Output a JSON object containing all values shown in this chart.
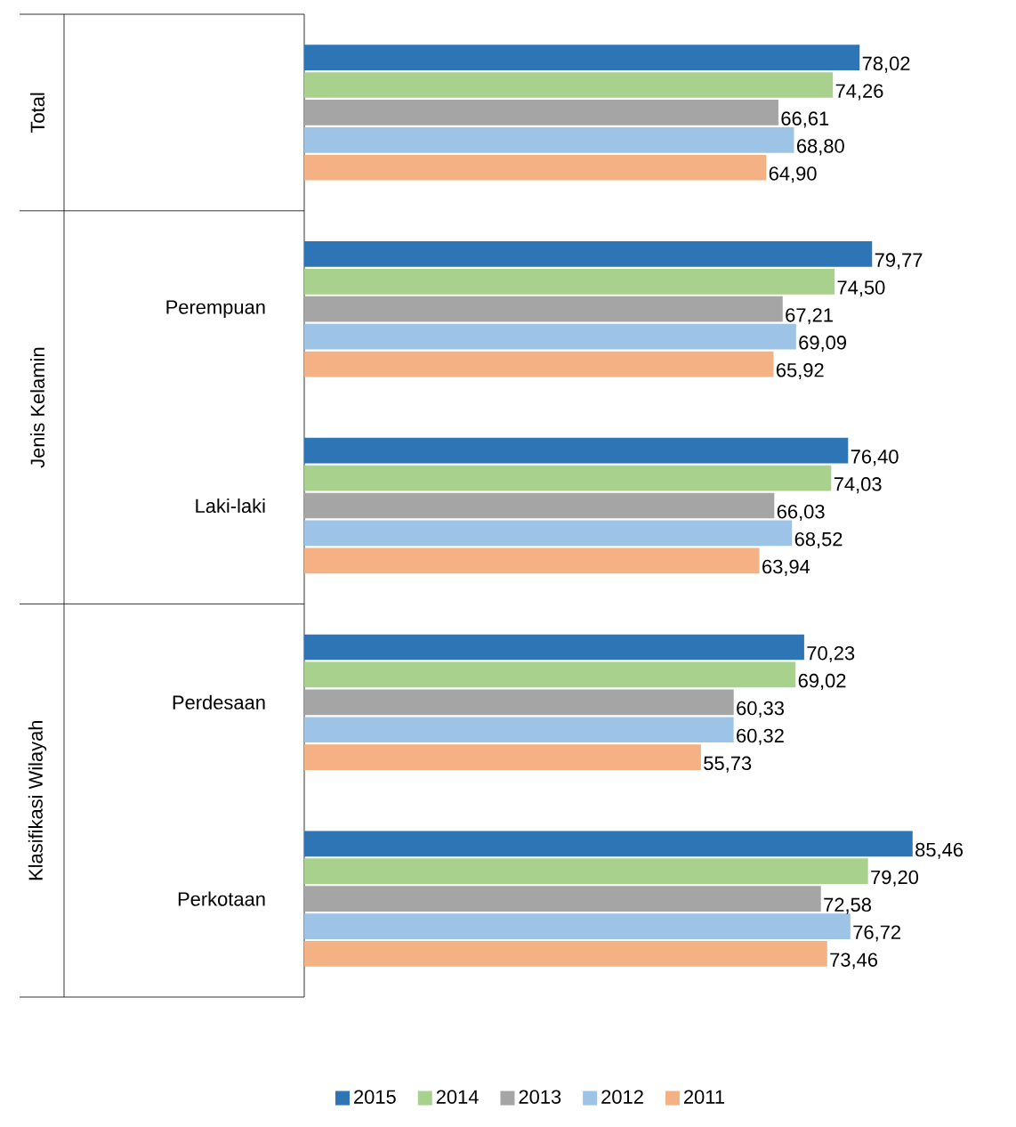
{
  "chart_data": {
    "type": "bar",
    "orientation": "horizontal",
    "categories": [
      null,
      "Perempuan",
      "Laki-laki",
      "Perdesaan",
      "Perkotaan"
    ],
    "legend": "bottom",
    "annotations": [
      "Total",
      "Jenis Kelamin",
      "Klasifikasi Wilayah"
    ],
    "series": [
      {
        "name": "2015",
        "color": "#2e75b6",
        "values": [
          78.02,
          79.77,
          76.4,
          70.23,
          85.46
        ],
        "value_labels": [
          "78,02",
          "79,77",
          "76,40",
          "70,23",
          "85,46"
        ]
      },
      {
        "name": "2014",
        "color": "#a9d18e",
        "values": [
          74.26,
          74.5,
          74.03,
          69.02,
          79.2
        ],
        "value_labels": [
          "74,26",
          "74,50",
          "74,03",
          "69,02",
          "79,20"
        ]
      },
      {
        "name": "2013",
        "color": "#a5a5a5",
        "values": [
          66.61,
          67.21,
          66.03,
          60.33,
          72.58
        ],
        "value_labels": [
          "66,61",
          "67,21",
          "66,03",
          "60,33",
          "72,58"
        ]
      },
      {
        "name": "2012",
        "color": "#9dc3e6",
        "values": [
          68.8,
          69.09,
          68.52,
          60.32,
          76.72
        ],
        "value_labels": [
          "68,80",
          "69,09",
          "68,52",
          "60,32",
          "76,72"
        ]
      },
      {
        "name": "2011",
        "color": "#f4b183",
        "values": [
          64.9,
          65.92,
          63.94,
          55.73,
          73.46
        ],
        "value_labels": [
          "64,90",
          "65,92",
          "63,94",
          "55,73",
          "73,46"
        ]
      }
    ]
  }
}
